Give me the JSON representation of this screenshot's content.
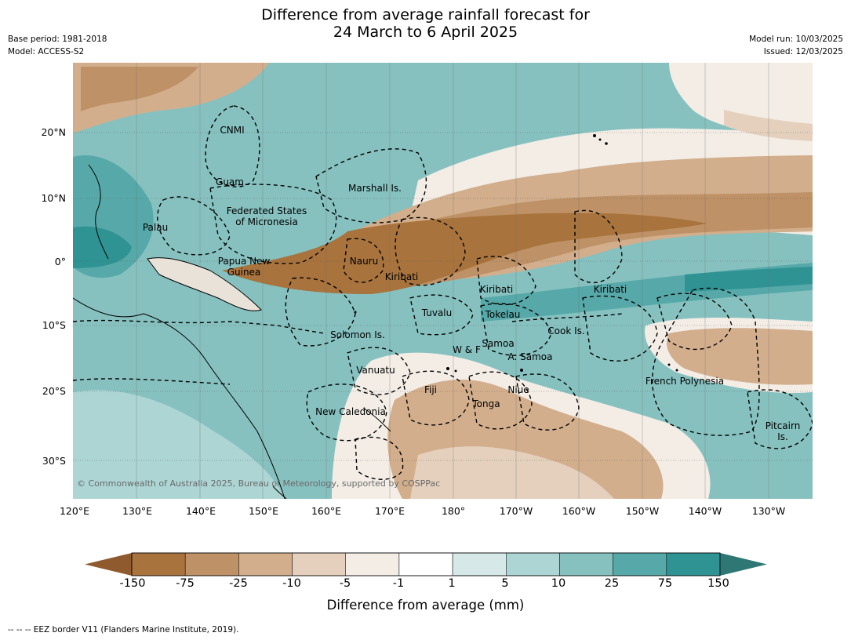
{
  "title": {
    "line1": "Difference from average rainfall forecast for",
    "line2": "24 March to 6 April 2025"
  },
  "meta": {
    "base_period": "Base period: 1981-2018",
    "model": "Model: ACCESS-S2",
    "model_run": "Model run: 10/03/2025",
    "issued": "Issued: 12/03/2025"
  },
  "axes": {
    "lat_ticks": [
      "20°N",
      "10°N",
      "0°",
      "10°S",
      "20°S",
      "30°S"
    ],
    "lon_ticks": [
      "120°E",
      "130°E",
      "140°E",
      "150°E",
      "160°E",
      "170°E",
      "180°",
      "170°W",
      "160°W",
      "150°W",
      "140°W",
      "130°W"
    ]
  },
  "regions": [
    "CNMI",
    "Guam",
    "Marshall Is.",
    "Federated States",
    "of Micronesia",
    "Palau",
    "Papua New",
    "Guinea",
    "Nauru",
    "Kiribati",
    "Kiribati",
    "Kiribati",
    "Tuvalu",
    "Tokelau",
    "Solomon Is.",
    "Cook Is.",
    "Samoa",
    "W & F",
    "A. Samoa",
    "Vanuatu",
    "Fiji",
    "Niue",
    "French Polynesia",
    "Tonga",
    "New Caledonia",
    "Pitcairn",
    "Is."
  ],
  "copyright": "© Commonwealth of Australia 2025, Bureau of Meteorology, supported by COSPPac",
  "colorbar": {
    "labels": [
      "-150",
      "-75",
      "-25",
      "-10",
      "-5",
      "-1",
      "1",
      "5",
      "10",
      "25",
      "75",
      "150"
    ],
    "colors": [
      "#8f5a2e",
      "#a8733c",
      "#be9166",
      "#d2ae8c",
      "#e4d0bd",
      "#f3ede6",
      "#ffffff",
      "#d6e9e8",
      "#acd5d4",
      "#86c1c0",
      "#57a9a9",
      "#2f9393",
      "#2e7775"
    ],
    "title": "Difference from average (mm)"
  },
  "footnote": "--  --  -- EEZ border V11 (Flanders Marine Institute, 2019)."
}
